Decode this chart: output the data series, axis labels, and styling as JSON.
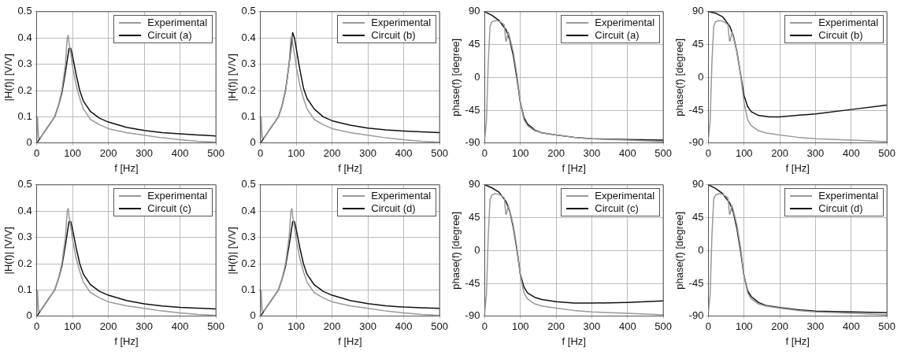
{
  "chart_data": [
    {
      "type": "line",
      "xlabel": "f [Hz]",
      "ylabel": "|H(f)| [V/V]",
      "xlim": [
        0,
        500
      ],
      "xticks": [
        0,
        100,
        200,
        300,
        400,
        500
      ],
      "ylim": [
        0,
        0.5
      ],
      "yticks": [
        0,
        0.1,
        0.2,
        0.3,
        0.4,
        0.5
      ],
      "grid": true,
      "legend": "top right",
      "marker": "none",
      "line_style": "solid",
      "series": [
        {
          "name": "Experimental",
          "color": "#999999",
          "x": [
            0,
            2,
            5,
            10,
            20,
            30,
            40,
            50,
            60,
            70,
            80,
            85,
            88,
            90,
            95,
            100,
            110,
            120,
            130,
            150,
            175,
            200,
            250,
            300,
            350,
            400,
            450,
            500
          ],
          "values": [
            0,
            0.1,
            0.02,
            0.02,
            0.04,
            0.06,
            0.08,
            0.1,
            0.14,
            0.2,
            0.3,
            0.4,
            0.41,
            0.38,
            0.34,
            0.29,
            0.22,
            0.17,
            0.13,
            0.09,
            0.07,
            0.055,
            0.04,
            0.03,
            0.02,
            0.013,
            0.007,
            0.003
          ]
        },
        {
          "name": "Circuit (a)",
          "color": "#111111",
          "x": [
            0,
            10,
            20,
            30,
            40,
            50,
            60,
            70,
            80,
            90,
            95,
            100,
            110,
            120,
            130,
            150,
            175,
            200,
            250,
            300,
            350,
            400,
            450,
            500
          ],
          "values": [
            0,
            0.02,
            0.04,
            0.06,
            0.08,
            0.1,
            0.14,
            0.19,
            0.27,
            0.36,
            0.36,
            0.33,
            0.26,
            0.2,
            0.16,
            0.12,
            0.095,
            0.08,
            0.06,
            0.048,
            0.04,
            0.035,
            0.031,
            0.027
          ]
        }
      ]
    },
    {
      "type": "line",
      "xlabel": "f [Hz]",
      "ylabel": "|H(f)| [V/V]",
      "xlim": [
        0,
        500
      ],
      "xticks": [
        0,
        100,
        200,
        300,
        400,
        500
      ],
      "ylim": [
        0,
        0.5
      ],
      "yticks": [
        0,
        0.1,
        0.2,
        0.3,
        0.4,
        0.5
      ],
      "grid": true,
      "legend": "top right",
      "marker": "none",
      "line_style": "solid",
      "series": [
        {
          "name": "Experimental",
          "color": "#999999",
          "x": [
            0,
            2,
            5,
            10,
            20,
            30,
            40,
            50,
            60,
            70,
            80,
            85,
            88,
            90,
            95,
            100,
            110,
            120,
            130,
            150,
            175,
            200,
            250,
            300,
            350,
            400,
            450,
            500
          ],
          "values": [
            0,
            0.1,
            0.02,
            0.02,
            0.04,
            0.06,
            0.08,
            0.1,
            0.14,
            0.2,
            0.3,
            0.4,
            0.41,
            0.38,
            0.34,
            0.29,
            0.22,
            0.17,
            0.13,
            0.09,
            0.07,
            0.055,
            0.04,
            0.03,
            0.02,
            0.013,
            0.007,
            0.003
          ]
        },
        {
          "name": "Circuit (b)",
          "color": "#111111",
          "x": [
            0,
            10,
            20,
            30,
            40,
            50,
            60,
            70,
            80,
            90,
            95,
            100,
            110,
            120,
            130,
            150,
            175,
            200,
            250,
            300,
            350,
            400,
            450,
            500
          ],
          "values": [
            0,
            0.02,
            0.04,
            0.06,
            0.08,
            0.1,
            0.14,
            0.2,
            0.3,
            0.42,
            0.4,
            0.36,
            0.28,
            0.21,
            0.17,
            0.13,
            0.1,
            0.085,
            0.068,
            0.057,
            0.05,
            0.046,
            0.043,
            0.04
          ]
        }
      ]
    },
    {
      "type": "line",
      "xlabel": "f [Hz]",
      "ylabel": "phase(f) [degree]",
      "xlim": [
        0,
        500
      ],
      "xticks": [
        0,
        100,
        200,
        300,
        400,
        500
      ],
      "ylim": [
        -90,
        90
      ],
      "yticks": [
        -90,
        -45,
        0,
        45,
        90
      ],
      "grid": true,
      "legend": "top right",
      "marker": "none",
      "line_style": "solid",
      "series": [
        {
          "name": "Experimental",
          "color": "#999999",
          "x": [
            0,
            5,
            10,
            15,
            20,
            30,
            40,
            50,
            55,
            59,
            61,
            66,
            70,
            80,
            90,
            100,
            110,
            120,
            140,
            160,
            200,
            250,
            300,
            400,
            500
          ],
          "values": [
            -85,
            -60,
            20,
            70,
            76,
            78,
            77,
            74,
            72,
            50,
            50,
            62,
            55,
            35,
            5,
            -35,
            -58,
            -66,
            -73,
            -76,
            -79,
            -82,
            -84,
            -86,
            -88
          ]
        },
        {
          "name": "Circuit (a)",
          "color": "#111111",
          "x": [
            0,
            20,
            40,
            60,
            70,
            80,
            90,
            100,
            110,
            120,
            140,
            160,
            200,
            250,
            300,
            400,
            500
          ],
          "values": [
            90,
            85,
            78,
            65,
            52,
            30,
            0,
            -35,
            -55,
            -64,
            -72,
            -76,
            -79,
            -82,
            -84,
            -85,
            -86
          ]
        }
      ]
    },
    {
      "type": "line",
      "xlabel": "f [Hz]",
      "ylabel": "phase(f) [degree]",
      "xlim": [
        0,
        500
      ],
      "xticks": [
        0,
        100,
        200,
        300,
        400,
        500
      ],
      "ylim": [
        -90,
        90
      ],
      "yticks": [
        -90,
        -45,
        0,
        45,
        90
      ],
      "grid": true,
      "legend": "top right",
      "marker": "none",
      "line_style": "solid",
      "series": [
        {
          "name": "Experimental",
          "color": "#999999",
          "x": [
            0,
            5,
            10,
            15,
            20,
            30,
            40,
            50,
            55,
            59,
            61,
            66,
            70,
            80,
            90,
            100,
            110,
            120,
            140,
            160,
            200,
            250,
            300,
            400,
            500
          ],
          "values": [
            -85,
            -60,
            20,
            70,
            76,
            78,
            77,
            74,
            72,
            50,
            50,
            62,
            55,
            35,
            5,
            -35,
            -58,
            -66,
            -73,
            -76,
            -79,
            -82,
            -84,
            -86,
            -88
          ]
        },
        {
          "name": "Circuit (b)",
          "color": "#111111",
          "x": [
            0,
            20,
            40,
            60,
            70,
            80,
            90,
            100,
            110,
            120,
            140,
            170,
            200,
            250,
            300,
            400,
            500
          ],
          "values": [
            90,
            88,
            83,
            70,
            57,
            35,
            5,
            -25,
            -40,
            -47,
            -52,
            -54,
            -54,
            -52,
            -50,
            -44,
            -38
          ]
        }
      ]
    },
    {
      "type": "line",
      "xlabel": "f [Hz]",
      "ylabel": "|H(f)| [V/V]",
      "xlim": [
        0,
        500
      ],
      "xticks": [
        0,
        100,
        200,
        300,
        400,
        500
      ],
      "ylim": [
        0,
        0.5
      ],
      "yticks": [
        0,
        0.1,
        0.2,
        0.3,
        0.4,
        0.5
      ],
      "grid": true,
      "legend": "top right",
      "marker": "none",
      "line_style": "solid",
      "series": [
        {
          "name": "Experimental",
          "color": "#999999",
          "x": [
            0,
            2,
            5,
            10,
            20,
            30,
            40,
            50,
            60,
            70,
            80,
            85,
            88,
            90,
            95,
            100,
            110,
            120,
            130,
            150,
            175,
            200,
            250,
            300,
            350,
            400,
            450,
            500
          ],
          "values": [
            0,
            0.1,
            0.02,
            0.02,
            0.04,
            0.06,
            0.08,
            0.1,
            0.14,
            0.2,
            0.3,
            0.4,
            0.41,
            0.38,
            0.34,
            0.29,
            0.22,
            0.17,
            0.13,
            0.09,
            0.07,
            0.055,
            0.04,
            0.03,
            0.02,
            0.013,
            0.007,
            0.003
          ]
        },
        {
          "name": "Circuit (c)",
          "color": "#111111",
          "x": [
            0,
            10,
            20,
            30,
            40,
            50,
            60,
            70,
            80,
            90,
            95,
            100,
            110,
            120,
            130,
            150,
            175,
            200,
            250,
            300,
            350,
            400,
            450,
            500
          ],
          "values": [
            0,
            0.02,
            0.04,
            0.06,
            0.08,
            0.1,
            0.14,
            0.19,
            0.27,
            0.36,
            0.36,
            0.33,
            0.26,
            0.2,
            0.16,
            0.12,
            0.095,
            0.08,
            0.06,
            0.047,
            0.039,
            0.034,
            0.031,
            0.028
          ]
        }
      ]
    },
    {
      "type": "line",
      "xlabel": "f [Hz]",
      "ylabel": "|H(f)| [V/V]",
      "xlim": [
        0,
        500
      ],
      "xticks": [
        0,
        100,
        200,
        300,
        400,
        500
      ],
      "ylim": [
        0,
        0.5
      ],
      "yticks": [
        0,
        0.1,
        0.2,
        0.3,
        0.4,
        0.5
      ],
      "grid": true,
      "legend": "top right",
      "marker": "none",
      "line_style": "solid",
      "series": [
        {
          "name": "Experimental",
          "color": "#999999",
          "x": [
            0,
            2,
            5,
            10,
            20,
            30,
            40,
            50,
            60,
            70,
            80,
            85,
            88,
            90,
            95,
            100,
            110,
            120,
            130,
            150,
            175,
            200,
            250,
            300,
            350,
            400,
            450,
            500
          ],
          "values": [
            0,
            0.1,
            0.02,
            0.02,
            0.04,
            0.06,
            0.08,
            0.1,
            0.14,
            0.2,
            0.3,
            0.4,
            0.41,
            0.38,
            0.34,
            0.29,
            0.22,
            0.17,
            0.13,
            0.09,
            0.07,
            0.055,
            0.04,
            0.03,
            0.02,
            0.013,
            0.007,
            0.003
          ]
        },
        {
          "name": "Circuit (d)",
          "color": "#111111",
          "x": [
            0,
            10,
            20,
            30,
            40,
            50,
            60,
            70,
            80,
            90,
            95,
            100,
            110,
            120,
            130,
            150,
            175,
            200,
            250,
            300,
            350,
            400,
            450,
            500
          ],
          "values": [
            0,
            0.02,
            0.04,
            0.06,
            0.08,
            0.1,
            0.14,
            0.19,
            0.27,
            0.36,
            0.36,
            0.33,
            0.26,
            0.2,
            0.16,
            0.12,
            0.095,
            0.08,
            0.06,
            0.048,
            0.04,
            0.035,
            0.032,
            0.03
          ]
        }
      ]
    },
    {
      "type": "line",
      "xlabel": "f [Hz]",
      "ylabel": "phase(f) [degree]",
      "xlim": [
        0,
        500
      ],
      "xticks": [
        0,
        100,
        200,
        300,
        400,
        500
      ],
      "ylim": [
        -90,
        90
      ],
      "yticks": [
        -90,
        -45,
        0,
        45,
        90
      ],
      "grid": true,
      "legend": "top right",
      "marker": "none",
      "line_style": "solid",
      "series": [
        {
          "name": "Experimental",
          "color": "#999999",
          "x": [
            0,
            5,
            10,
            15,
            20,
            30,
            40,
            50,
            55,
            59,
            61,
            66,
            70,
            80,
            90,
            100,
            110,
            120,
            140,
            160,
            200,
            250,
            300,
            400,
            500
          ],
          "values": [
            -85,
            -60,
            20,
            70,
            76,
            78,
            77,
            74,
            72,
            50,
            50,
            62,
            55,
            35,
            5,
            -35,
            -58,
            -66,
            -73,
            -76,
            -79,
            -82,
            -84,
            -86,
            -88
          ]
        },
        {
          "name": "Circuit (c)",
          "color": "#111111",
          "x": [
            0,
            20,
            40,
            60,
            70,
            80,
            90,
            100,
            110,
            120,
            140,
            160,
            200,
            250,
            300,
            400,
            500
          ],
          "values": [
            90,
            86,
            80,
            67,
            54,
            32,
            2,
            -33,
            -50,
            -58,
            -64,
            -67,
            -70,
            -72,
            -72,
            -71,
            -69
          ]
        }
      ]
    },
    {
      "type": "line",
      "xlabel": "f [Hz]",
      "ylabel": "phase(f) [degree]",
      "xlim": [
        0,
        500
      ],
      "xticks": [
        0,
        100,
        200,
        300,
        400,
        500
      ],
      "ylim": [
        -90,
        90
      ],
      "yticks": [
        -90,
        -45,
        0,
        45,
        90
      ],
      "grid": true,
      "legend": "top right",
      "marker": "none",
      "line_style": "solid",
      "series": [
        {
          "name": "Experimental",
          "color": "#999999",
          "x": [
            0,
            5,
            10,
            15,
            20,
            30,
            40,
            50,
            55,
            59,
            61,
            66,
            70,
            80,
            90,
            100,
            110,
            120,
            140,
            160,
            200,
            250,
            300,
            400,
            500
          ],
          "values": [
            -85,
            -60,
            20,
            70,
            76,
            78,
            77,
            74,
            72,
            50,
            50,
            62,
            55,
            35,
            5,
            -35,
            -58,
            -66,
            -73,
            -76,
            -79,
            -82,
            -84,
            -86,
            -88
          ]
        },
        {
          "name": "Circuit (d)",
          "color": "#111111",
          "x": [
            0,
            20,
            40,
            60,
            70,
            80,
            90,
            100,
            110,
            120,
            140,
            160,
            200,
            250,
            300,
            400,
            500
          ],
          "values": [
            90,
            85,
            78,
            65,
            52,
            30,
            0,
            -35,
            -55,
            -63,
            -71,
            -75,
            -78,
            -81,
            -83,
            -84,
            -85
          ]
        }
      ]
    }
  ]
}
